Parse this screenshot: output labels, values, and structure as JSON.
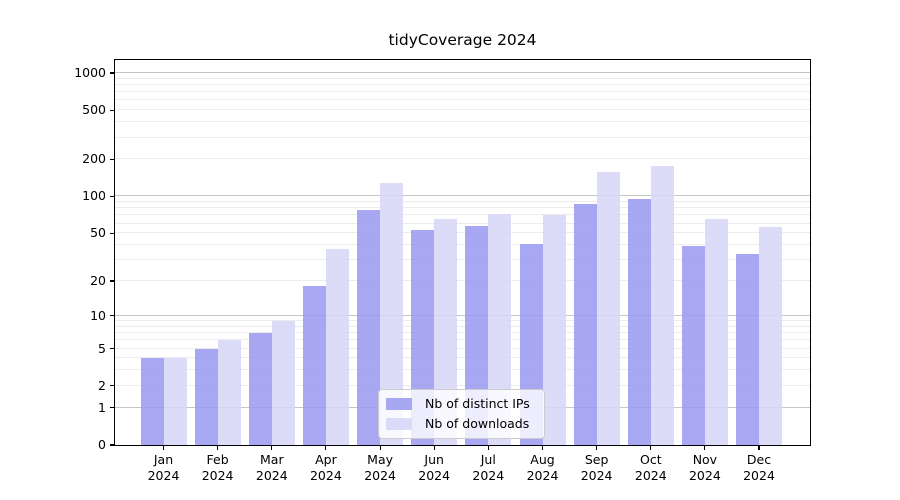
{
  "title": "tidyCoverage 2024",
  "chart_data": {
    "type": "bar",
    "title": "tidyCoverage 2024",
    "xlabel": "",
    "ylabel": "",
    "yscale": "log1p",
    "ylim": [
      0,
      1270
    ],
    "yticks": [
      0,
      1,
      2,
      5,
      10,
      20,
      50,
      100,
      200,
      500,
      1000
    ],
    "major_gridlines": [
      1,
      10,
      100,
      1000
    ],
    "minor_gridlines": [
      2,
      3,
      4,
      5,
      6,
      7,
      8,
      9,
      20,
      30,
      40,
      50,
      60,
      70,
      80,
      90,
      200,
      300,
      400,
      500,
      600,
      700,
      800,
      900
    ],
    "grid": "on",
    "legend_position": "lower center",
    "grid_minor_color": "#ececec",
    "grid_major_color": "#c6c6c6",
    "categories": [
      {
        "month": "Jan",
        "year": "2024"
      },
      {
        "month": "Feb",
        "year": "2024"
      },
      {
        "month": "Mar",
        "year": "2024"
      },
      {
        "month": "Apr",
        "year": "2024"
      },
      {
        "month": "May",
        "year": "2024"
      },
      {
        "month": "Jun",
        "year": "2024"
      },
      {
        "month": "Jul",
        "year": "2024"
      },
      {
        "month": "Aug",
        "year": "2024"
      },
      {
        "month": "Sep",
        "year": "2024"
      },
      {
        "month": "Oct",
        "year": "2024"
      },
      {
        "month": "Nov",
        "year": "2024"
      },
      {
        "month": "Dec",
        "year": "2024"
      }
    ],
    "series": [
      {
        "name": "Nb of distinct IPs",
        "color": "#9b9bf0",
        "values": [
          4,
          5,
          7,
          18,
          78,
          53,
          57,
          41,
          87,
          95,
          39,
          34
        ]
      },
      {
        "name": "Nb of downloads",
        "color": "#d7d7f8",
        "values": [
          4,
          6,
          9,
          37,
          128,
          65,
          72,
          70,
          157,
          177,
          66,
          56
        ]
      }
    ]
  }
}
